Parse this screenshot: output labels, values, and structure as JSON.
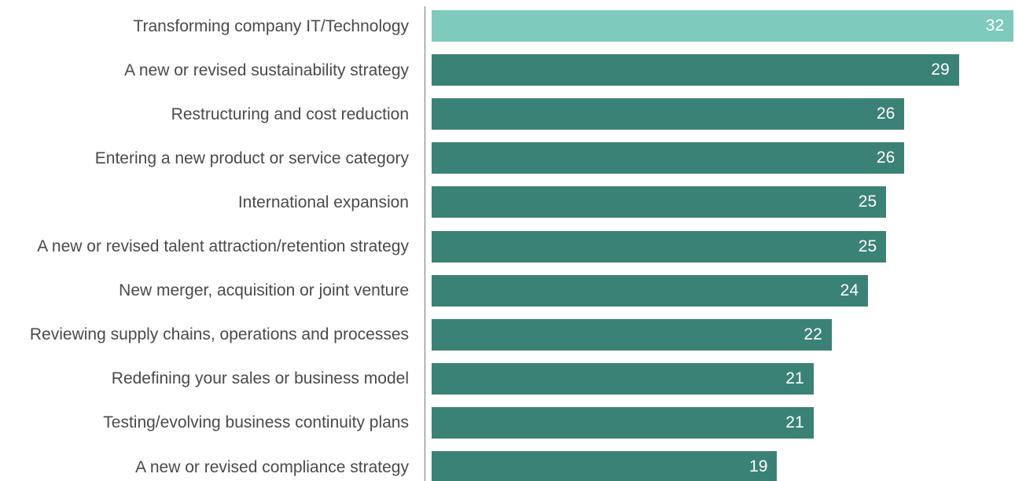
{
  "chart_data": {
    "type": "bar",
    "orientation": "horizontal",
    "categories": [
      "Transforming company IT/Technology",
      "A new or revised sustainability strategy",
      "Restructuring and cost reduction",
      "Entering a new product or service category",
      "International expansion",
      "A new or revised talent attraction/retention strategy",
      "New merger, acquisition or joint venture",
      "Reviewing supply chains, operations and processes",
      "Redefining your sales or business model",
      "Testing/evolving business continuity plans",
      "A new or revised compliance strategy"
    ],
    "values": [
      32,
      29,
      26,
      26,
      25,
      25,
      24,
      22,
      21,
      21,
      19
    ],
    "colors": [
      "#7ecbbd",
      "#3b8276",
      "#3b8276",
      "#3b8276",
      "#3b8276",
      "#3b8276",
      "#3b8276",
      "#3b8276",
      "#3b8276",
      "#3b8276",
      "#3b8276"
    ]
  }
}
